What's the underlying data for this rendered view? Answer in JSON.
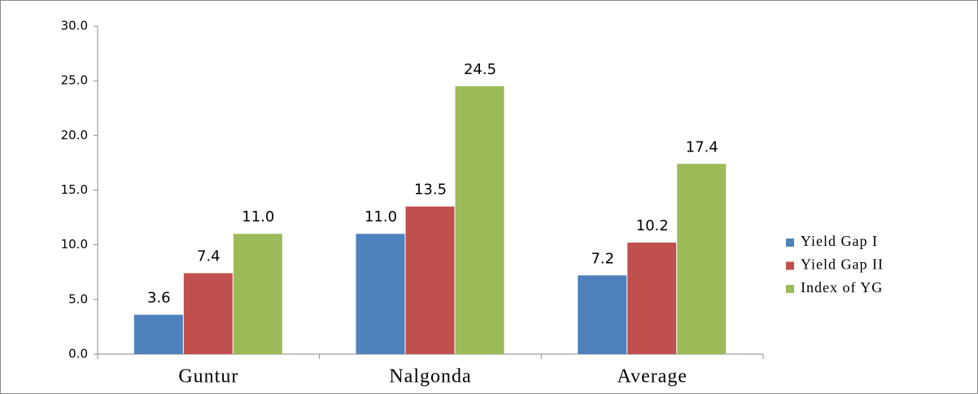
{
  "chart_data": {
    "type": "bar",
    "categories": [
      "Guntur",
      "Nalgonda",
      "Average"
    ],
    "series": [
      {
        "name": "Yield Gap I",
        "color": "#4f81bd",
        "values": [
          3.6,
          11.0,
          7.2
        ],
        "value_labels": [
          "3.6",
          "11.0",
          "7.2"
        ]
      },
      {
        "name": "Yield Gap II",
        "color": "#c0504d",
        "values": [
          7.4,
          13.5,
          10.2
        ],
        "value_labels": [
          "7.4",
          "13.5",
          "10.2"
        ]
      },
      {
        "name": "Index of YG",
        "color": "#9bbb59",
        "values": [
          11.0,
          24.5,
          17.4
        ],
        "value_labels": [
          "11.0",
          "24.5",
          "17.4"
        ]
      }
    ],
    "ylim": [
      0,
      30
    ],
    "yticks": [
      {
        "value": 0,
        "label": "0.0"
      },
      {
        "value": 5,
        "label": "5.0"
      },
      {
        "value": 10,
        "label": "10.0"
      },
      {
        "value": 15,
        "label": "15.0"
      },
      {
        "value": 20,
        "label": "20.0"
      },
      {
        "value": 25,
        "label": "25.0"
      },
      {
        "value": 30,
        "label": "30.0"
      }
    ],
    "grid": false,
    "legend": "right"
  }
}
